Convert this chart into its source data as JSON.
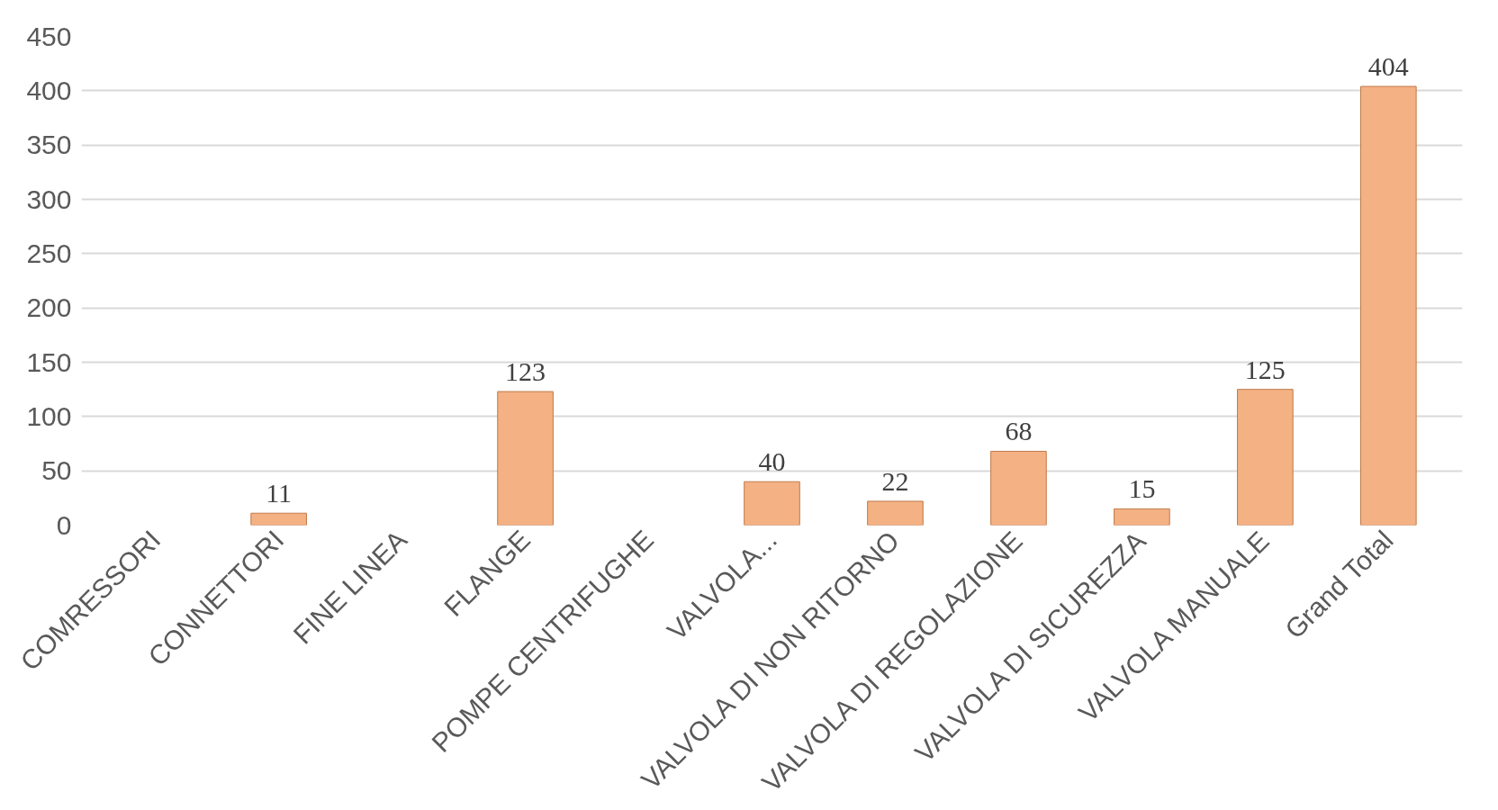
{
  "chart_data": {
    "type": "bar",
    "categories": [
      "COMRESSORI",
      "CONNETTORI",
      "FINE LINEA",
      "FLANGE",
      "POMPE CENTRIFUGHE",
      "VALVOLA...",
      "VALVOLA DI NON RITORNO",
      "VALVOLA DI REGOLAZIONE",
      "VALVOLA DI SICUREZZA",
      "VALVOLA MANUALE",
      "Grand Total"
    ],
    "values": [
      null,
      11,
      null,
      123,
      null,
      40,
      22,
      68,
      15,
      125,
      404
    ],
    "color": "#f4b183",
    "ylim": [
      0,
      450
    ],
    "yticks": [
      0,
      50,
      100,
      150,
      200,
      250,
      300,
      350,
      400,
      450
    ],
    "grid": "y",
    "data_labels": true
  }
}
